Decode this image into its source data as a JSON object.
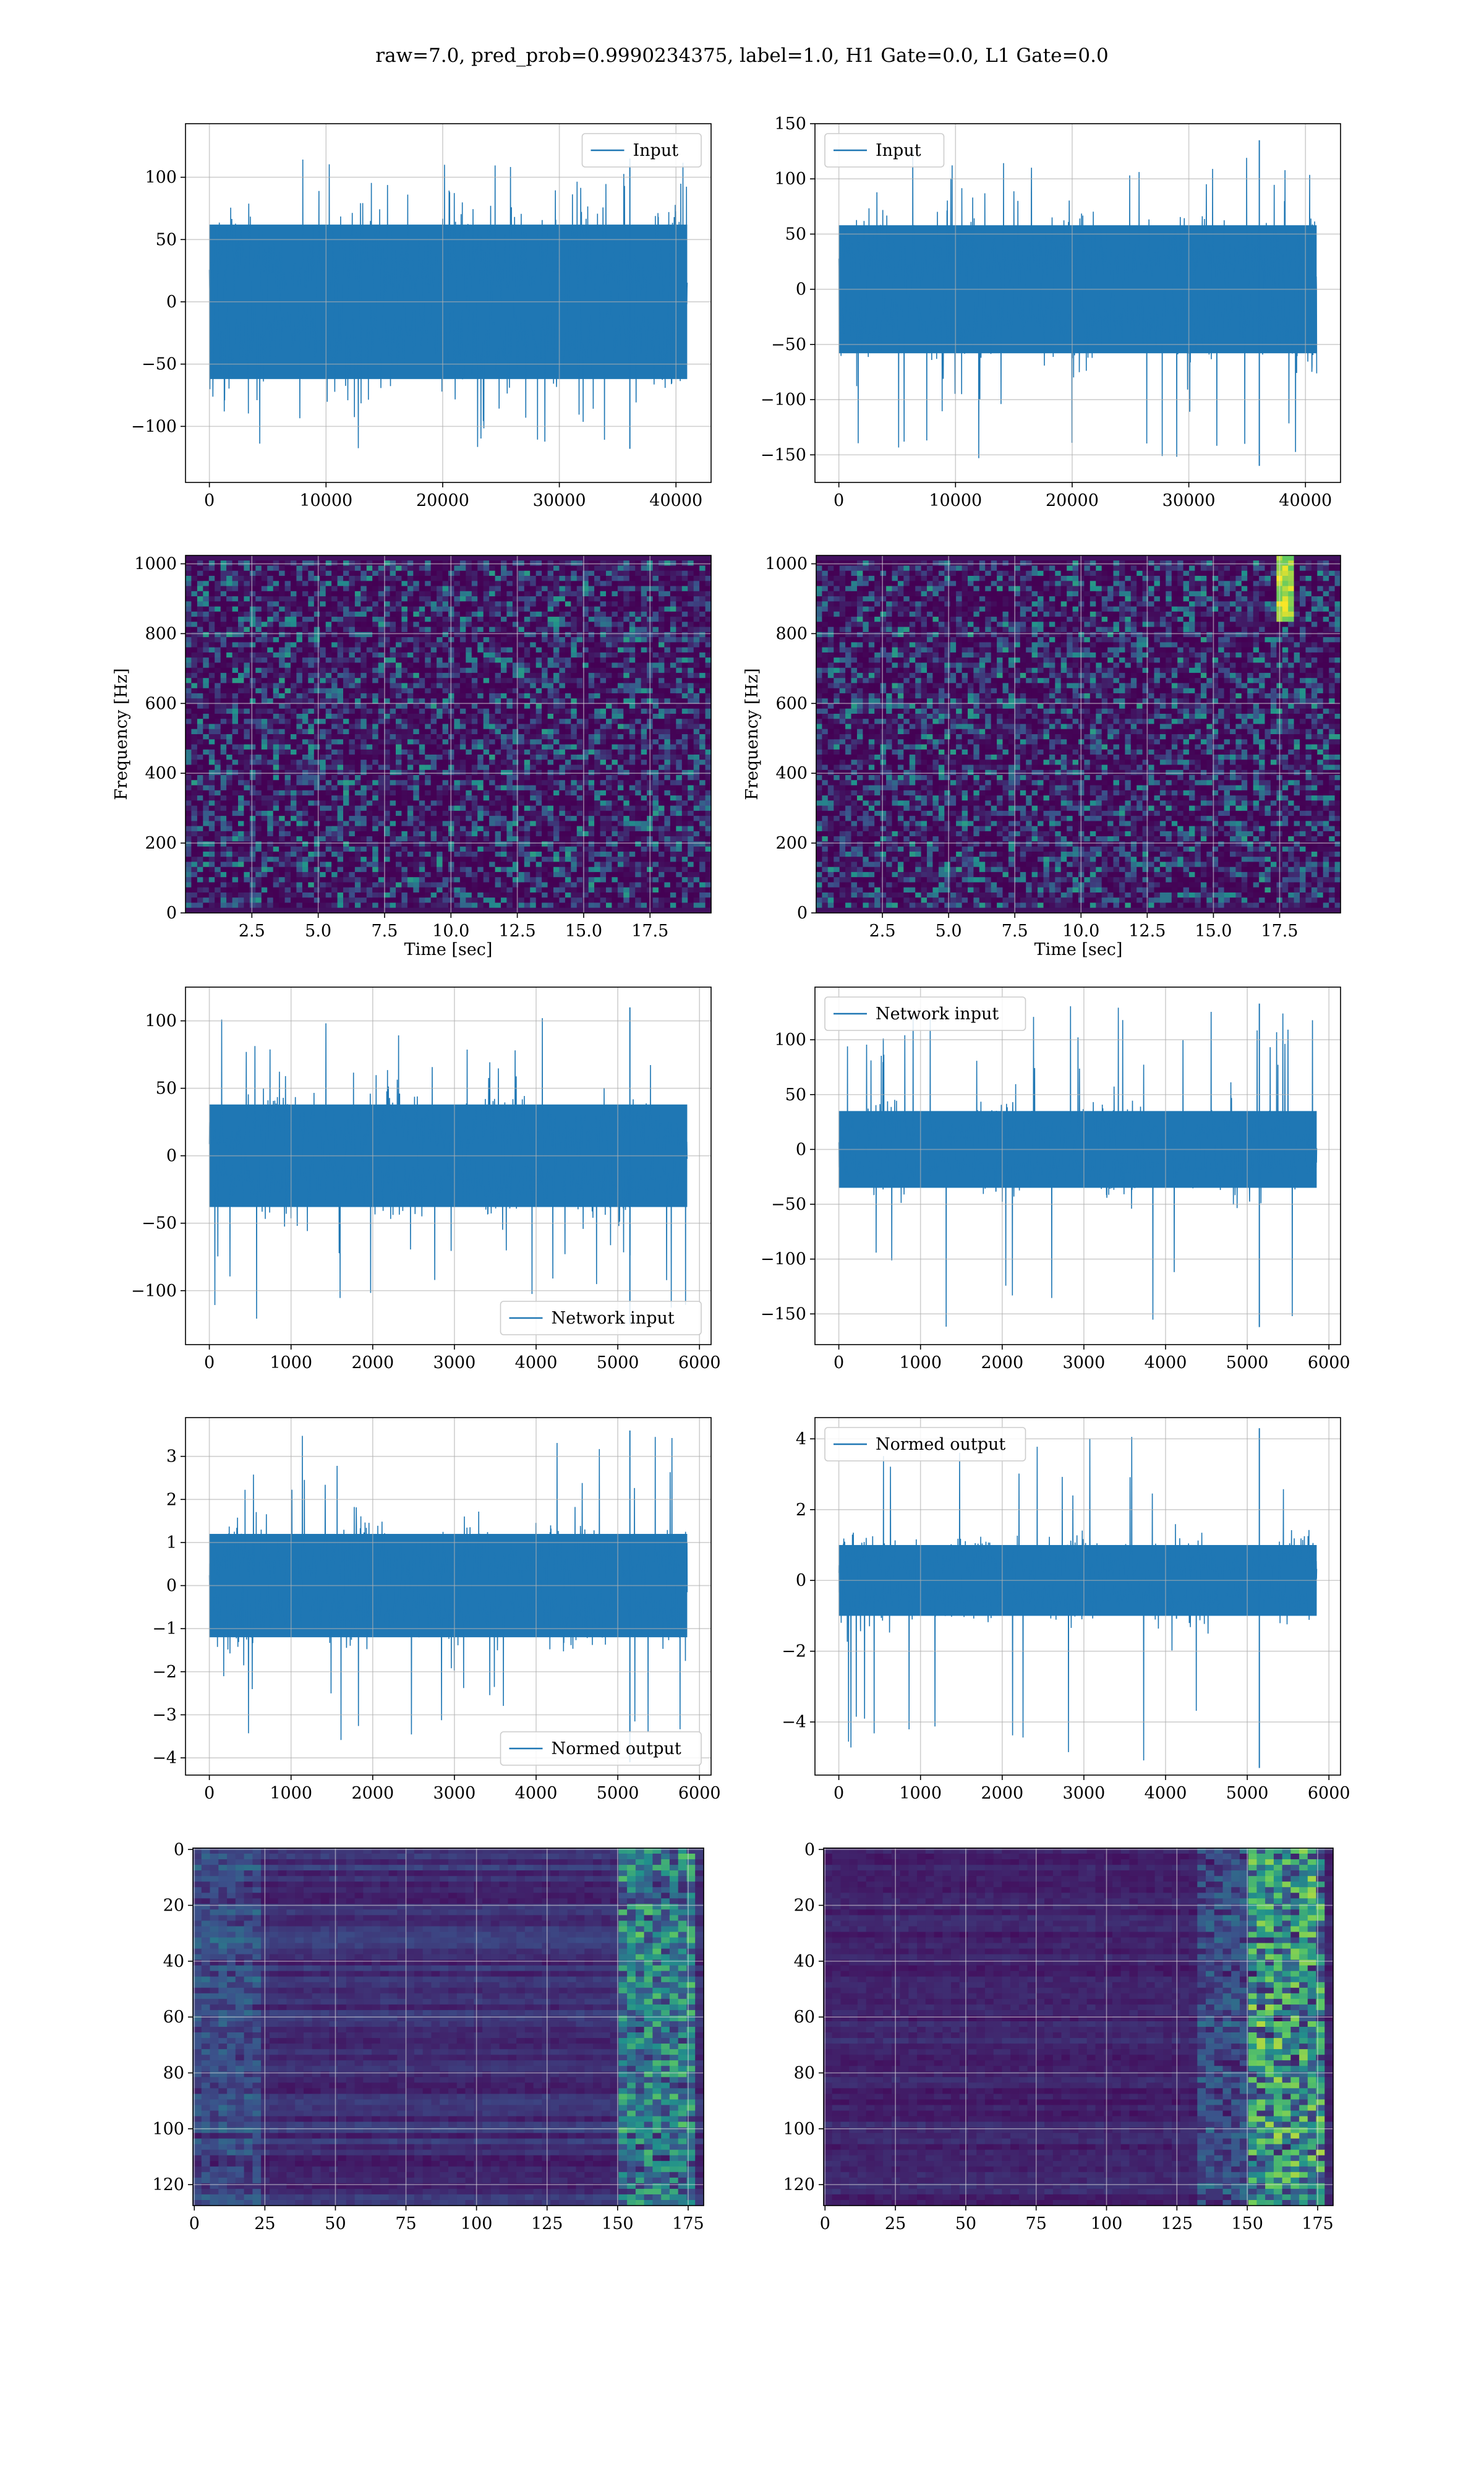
{
  "figure": {
    "suptitle": "raw=7.0, pred_prob=0.9990234375, label=1.0, H1 Gate=0.0, L1 Gate=0.0"
  },
  "colors": {
    "line": "#1f77b4",
    "grid": "#b0b0b0",
    "viridis_dark": "#440154",
    "viridis_blue": "#3b528b",
    "viridis_teal": "#21918c",
    "viridis_green": "#5ec962",
    "viridis_yellow": "#fde725"
  },
  "chart_data": [
    {
      "id": "h1-input",
      "type": "line",
      "row": 0,
      "col": 0,
      "legend": "Input",
      "legend_loc": "upper right",
      "x_range": [
        0,
        40960
      ],
      "xlim": [
        -2048,
        43008
      ],
      "ylim": [
        -145,
        143
      ],
      "xticks": [
        0,
        10000,
        20000,
        30000,
        40000
      ],
      "yticks": [
        -100,
        -50,
        0,
        50,
        100
      ],
      "band": [
        -62,
        62
      ],
      "spike_max": 115,
      "spike_min": -118,
      "grid": true
    },
    {
      "id": "l1-input",
      "type": "line",
      "row": 0,
      "col": 1,
      "legend": "Input",
      "legend_loc": "upper left",
      "x_range": [
        0,
        40960
      ],
      "xlim": [
        -2048,
        43008
      ],
      "ylim": [
        -175,
        150
      ],
      "xticks": [
        0,
        10000,
        20000,
        30000,
        40000
      ],
      "yticks": [
        -150,
        -100,
        -50,
        0,
        50,
        100,
        150
      ],
      "band": [
        -58,
        58
      ],
      "spike_max": 135,
      "spike_min": -160,
      "grid": true
    },
    {
      "id": "h1-spectrogram",
      "type": "heatmap",
      "row": 1,
      "col": 0,
      "xlabel": "Time [sec]",
      "ylabel": "Frequency [Hz]",
      "xlim": [
        0,
        19.8
      ],
      "ylim": [
        0,
        1024
      ],
      "xticks": [
        2.5,
        5.0,
        7.5,
        10.0,
        12.5,
        15.0,
        17.5
      ],
      "yticks": [
        0,
        200,
        400,
        600,
        800,
        1000
      ],
      "grid": true
    },
    {
      "id": "l1-spectrogram",
      "type": "heatmap",
      "row": 1,
      "col": 1,
      "xlabel": "Time [sec]",
      "ylabel": "Frequency [Hz]",
      "xlim": [
        0,
        19.8
      ],
      "ylim": [
        0,
        1024
      ],
      "xticks": [
        2.5,
        5.0,
        7.5,
        10.0,
        12.5,
        15.0,
        17.5
      ],
      "yticks": [
        0,
        200,
        400,
        600,
        800,
        1000
      ],
      "grid": true
    },
    {
      "id": "h1-network-input",
      "type": "line",
      "row": 2,
      "col": 0,
      "legend": "Network input",
      "legend_loc": "lower right",
      "x_range": [
        0,
        5850
      ],
      "xlim": [
        -292,
        6142
      ],
      "ylim": [
        -140,
        125
      ],
      "xticks": [
        0,
        1000,
        2000,
        3000,
        4000,
        5000,
        6000
      ],
      "yticks": [
        -100,
        -50,
        0,
        50,
        100
      ],
      "band": [
        -38,
        38
      ],
      "spike_max": 110,
      "spike_min": -125,
      "grid": true
    },
    {
      "id": "l1-network-input",
      "type": "line",
      "row": 2,
      "col": 1,
      "legend": "Network input",
      "legend_loc": "upper left",
      "x_range": [
        0,
        5850
      ],
      "xlim": [
        -292,
        6142
      ],
      "ylim": [
        -178,
        148
      ],
      "xticks": [
        0,
        1000,
        2000,
        3000,
        4000,
        5000,
        6000
      ],
      "yticks": [
        -150,
        -100,
        -50,
        0,
        50,
        100
      ],
      "band": [
        -35,
        35
      ],
      "spike_max": 133,
      "spike_min": -162,
      "grid": true
    },
    {
      "id": "h1-normed-output",
      "type": "line",
      "row": 3,
      "col": 0,
      "legend": "Normed output",
      "legend_loc": "lower right",
      "x_range": [
        0,
        5850
      ],
      "xlim": [
        -292,
        6142
      ],
      "ylim": [
        -4.4,
        3.9
      ],
      "xticks": [
        0,
        1000,
        2000,
        3000,
        4000,
        5000,
        6000
      ],
      "yticks": [
        -4,
        -3,
        -2,
        -1,
        0,
        1,
        2,
        3
      ],
      "band": [
        -1.2,
        1.2
      ],
      "spike_max": 3.6,
      "spike_min": -4.1,
      "grid": true
    },
    {
      "id": "l1-normed-output",
      "type": "line",
      "row": 3,
      "col": 1,
      "legend": "Normed output",
      "legend_loc": "upper left",
      "x_range": [
        0,
        5850
      ],
      "xlim": [
        -292,
        6142
      ],
      "ylim": [
        -5.5,
        4.6
      ],
      "xticks": [
        0,
        1000,
        2000,
        3000,
        4000,
        5000,
        6000
      ],
      "yticks": [
        -4,
        -2,
        0,
        2,
        4
      ],
      "band": [
        -1.0,
        1.0
      ],
      "spike_max": 4.3,
      "spike_min": -5.3,
      "grid": true
    },
    {
      "id": "h1-feature-map",
      "type": "heatmap",
      "row": 4,
      "col": 0,
      "xlim": [
        -0.5,
        180.5
      ],
      "ylim": [
        127.5,
        -0.5
      ],
      "xticks": [
        0,
        25,
        50,
        75,
        100,
        125,
        150,
        175
      ],
      "yticks": [
        0,
        20,
        40,
        60,
        80,
        100,
        120
      ],
      "grid": true
    },
    {
      "id": "l1-feature-map",
      "type": "heatmap",
      "row": 4,
      "col": 1,
      "xlim": [
        -0.5,
        180.5
      ],
      "ylim": [
        127.5,
        -0.5
      ],
      "xticks": [
        0,
        25,
        50,
        75,
        100,
        125,
        150,
        175
      ],
      "yticks": [
        0,
        20,
        40,
        60,
        80,
        100,
        120
      ],
      "grid": true
    }
  ]
}
